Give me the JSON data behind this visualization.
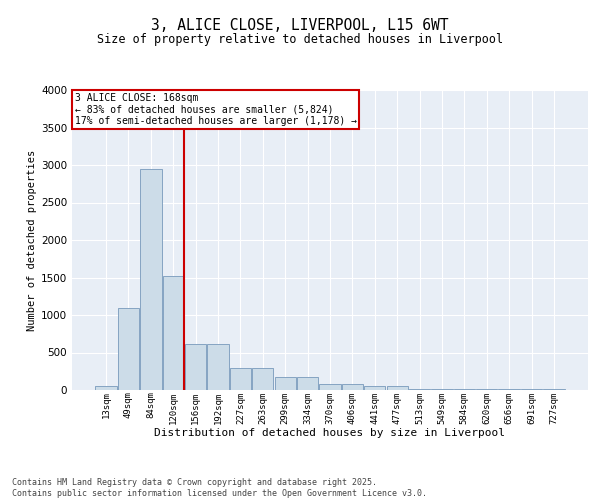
{
  "title": "3, ALICE CLOSE, LIVERPOOL, L15 6WT",
  "subtitle": "Size of property relative to detached houses in Liverpool",
  "xlabel": "Distribution of detached houses by size in Liverpool",
  "ylabel": "Number of detached properties",
  "property_label": "3 ALICE CLOSE: 168sqm",
  "annotation_line1": "← 83% of detached houses are smaller (5,824)",
  "annotation_line2": "17% of semi-detached houses are larger (1,178) →",
  "footnote1": "Contains HM Land Registry data © Crown copyright and database right 2025.",
  "footnote2": "Contains public sector information licensed under the Open Government Licence v3.0.",
  "bin_labels": [
    "13sqm",
    "49sqm",
    "84sqm",
    "120sqm",
    "156sqm",
    "192sqm",
    "227sqm",
    "263sqm",
    "299sqm",
    "334sqm",
    "370sqm",
    "406sqm",
    "441sqm",
    "477sqm",
    "513sqm",
    "549sqm",
    "584sqm",
    "620sqm",
    "656sqm",
    "691sqm",
    "727sqm"
  ],
  "bar_values": [
    50,
    1100,
    2950,
    1520,
    620,
    620,
    300,
    300,
    170,
    170,
    85,
    85,
    50,
    50,
    8,
    8,
    8,
    8,
    8,
    8,
    8
  ],
  "bar_color": "#ccdce8",
  "bar_edge_color": "#7799bb",
  "vline_color": "#cc0000",
  "vline_index": 4,
  "annotation_box_edgecolor": "#cc0000",
  "plot_bg_color": "#e8eef6",
  "ylim": [
    0,
    4000
  ],
  "yticks": [
    0,
    500,
    1000,
    1500,
    2000,
    2500,
    3000,
    3500,
    4000
  ]
}
